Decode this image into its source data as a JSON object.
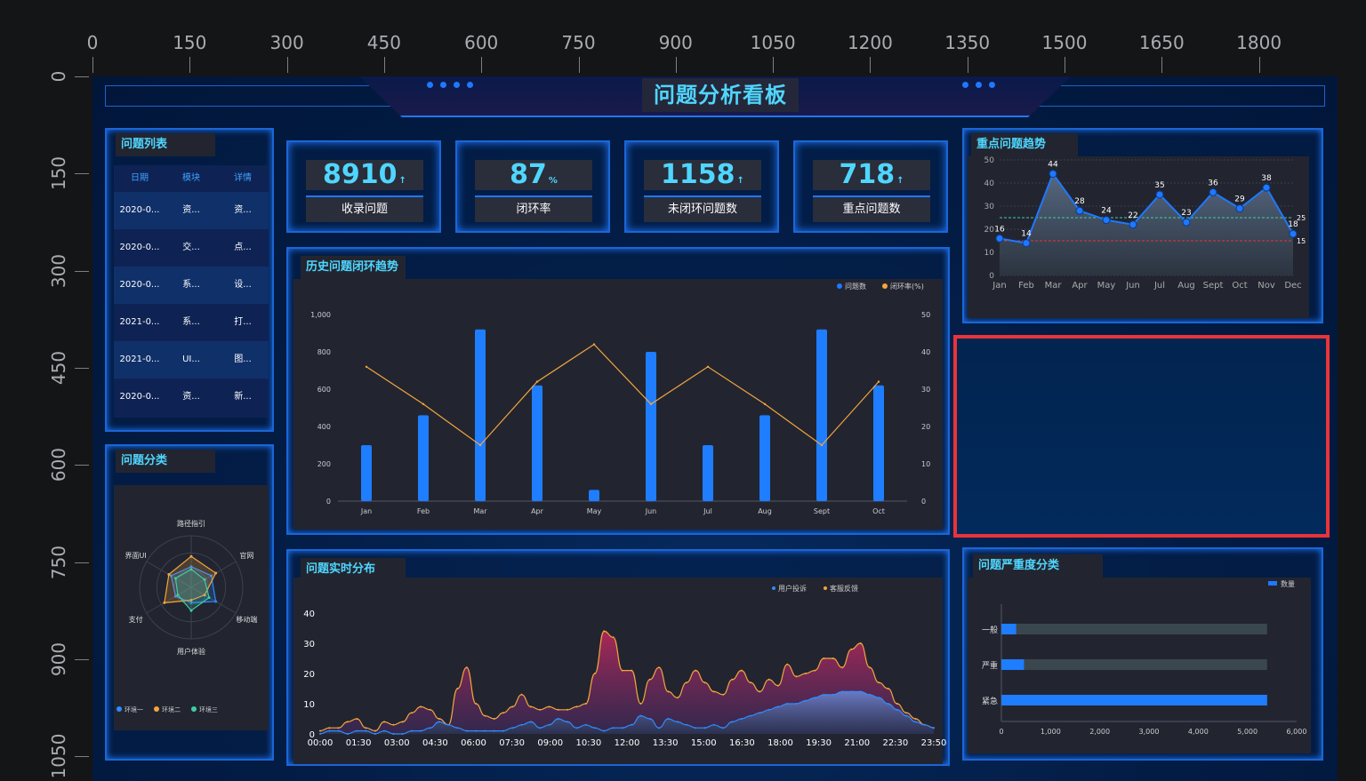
{
  "ruler": {
    "top": [
      "0",
      "150",
      "300",
      "450",
      "600",
      "750",
      "900",
      "1050",
      "1200",
      "1350",
      "1500",
      "1650",
      "1800"
    ],
    "left": [
      "0",
      "150",
      "300",
      "450",
      "600",
      "750",
      "900",
      "1050"
    ]
  },
  "title": "问题分析看板",
  "stats": [
    {
      "value": "8910",
      "unit": "↑",
      "label": "收录问题"
    },
    {
      "value": "87",
      "unit": "%",
      "label": "闭环率"
    },
    {
      "value": "1158",
      "unit": "↑",
      "label": "未闭环问题数"
    },
    {
      "value": "718",
      "unit": "↑",
      "label": "重点问题数"
    }
  ],
  "problem_list": {
    "title": "问题列表",
    "headers": [
      "日期",
      "模块",
      "详情"
    ],
    "rows": [
      [
        "2020-0...",
        "资...",
        "资..."
      ],
      [
        "2020-0...",
        "交...",
        "点..."
      ],
      [
        "2020-0...",
        "系...",
        "设..."
      ],
      [
        "2021-0...",
        "系...",
        "打..."
      ],
      [
        "2021-0...",
        "UI...",
        "图..."
      ],
      [
        "2020-0...",
        "资...",
        "新..."
      ]
    ]
  },
  "category": {
    "title": "问题分类",
    "indicators": [
      "路径指引",
      "官网",
      "移动端",
      "用户体验",
      "支付",
      "界面UI"
    ],
    "legend": [
      "环境一",
      "环境二",
      "环境三"
    ],
    "colors": [
      "#2f8cff",
      "#f4a53c",
      "#3ecfa0"
    ]
  },
  "history": {
    "title": "历史问题闭环趋势",
    "legend": [
      "问题数",
      "闭环率(%)"
    ],
    "chart_data": {
      "type": "bar",
      "categories": [
        "Jan",
        "Feb",
        "Mar",
        "Apr",
        "May",
        "Jun",
        "Jul",
        "Aug",
        "Sept",
        "Oct"
      ],
      "series": [
        {
          "name": "问题数",
          "type": "bar",
          "values": [
            300,
            460,
            920,
            620,
            60,
            800,
            300,
            460,
            920,
            620
          ]
        },
        {
          "name": "闭环率(%)",
          "type": "line",
          "values": [
            36,
            26,
            15,
            32,
            42,
            26,
            36,
            26,
            15,
            32
          ]
        }
      ],
      "y_left_ticks": [
        "0",
        "200",
        "400",
        "600",
        "800",
        "1,000"
      ],
      "y_right_ticks": [
        "0",
        "10",
        "20",
        "30",
        "40",
        "50"
      ],
      "ylim_left": [
        0,
        1000
      ],
      "ylim_right": [
        0,
        50
      ]
    }
  },
  "key_trend": {
    "title": "重点问题趋势",
    "chart_data": {
      "type": "line",
      "categories": [
        "Jan",
        "Feb",
        "Mar",
        "Apr",
        "May",
        "Jun",
        "Jul",
        "Aug",
        "Sept",
        "Oct",
        "Nov",
        "Dec"
      ],
      "values": [
        16,
        14,
        44,
        28,
        24,
        22,
        35,
        23,
        36,
        29,
        38,
        18
      ],
      "y_ticks": [
        "0",
        "10",
        "20",
        "30",
        "40",
        "50"
      ],
      "ylim": [
        0,
        50
      ],
      "markline_values": [
        25,
        15
      ],
      "marklines": [
        "25",
        "15"
      ]
    }
  },
  "realtime": {
    "title": "问题实时分布",
    "legend": [
      "用户投诉",
      "客服反馈"
    ],
    "chart_data": {
      "type": "area",
      "x_ticks": [
        "00:00",
        "01:30",
        "03:00",
        "04:30",
        "06:00",
        "07:30",
        "09:00",
        "10:30",
        "12:00",
        "13:30",
        "15:00",
        "16:30",
        "18:00",
        "19:30",
        "21:00",
        "22:30",
        "23:50"
      ],
      "y_ticks": [
        "0",
        "10",
        "20",
        "30",
        "40"
      ],
      "ylim": [
        0,
        40
      ],
      "series": [
        {
          "name": "用户投诉",
          "values": [
            0,
            1,
            1,
            0,
            1,
            1,
            0,
            1,
            0,
            0,
            1,
            1,
            2,
            4,
            3,
            2,
            1,
            1,
            1,
            1,
            1,
            2,
            3,
            4,
            2,
            3,
            5,
            4,
            2,
            3,
            2,
            1,
            2,
            2,
            3,
            6,
            5,
            2,
            5,
            4,
            3,
            2,
            2,
            3,
            2,
            4,
            5,
            6,
            7,
            8,
            9,
            10,
            10,
            11,
            12,
            13,
            13,
            14,
            14,
            14,
            13,
            12,
            10,
            8,
            6,
            4,
            3,
            2
          ]
        },
        {
          "name": "客服反馈",
          "values": [
            1,
            2,
            2,
            4,
            5,
            2,
            1,
            4,
            3,
            4,
            7,
            9,
            8,
            5,
            3,
            15,
            22,
            10,
            6,
            5,
            7,
            9,
            13,
            9,
            8,
            9,
            8,
            8,
            9,
            10,
            20,
            34,
            32,
            21,
            21,
            10,
            18,
            22,
            14,
            12,
            17,
            21,
            17,
            14,
            13,
            18,
            21,
            17,
            14,
            18,
            16,
            23,
            19,
            20,
            21,
            25,
            25,
            22,
            28,
            30,
            22,
            17,
            15,
            10,
            7,
            5,
            3,
            2
          ]
        }
      ]
    }
  },
  "severity": {
    "title": "问题严重度分类",
    "legend": "数量",
    "chart_data": {
      "type": "bar",
      "orientation": "horizontal",
      "categories": [
        "一般",
        "严重",
        "紧急"
      ],
      "values": [
        300,
        460,
        5400
      ],
      "max": 5400,
      "x_ticks": [
        "0",
        "1,000",
        "2,000",
        "3,000",
        "4,000",
        "5,000",
        "6,000"
      ],
      "xlim": [
        0,
        6000
      ]
    }
  }
}
